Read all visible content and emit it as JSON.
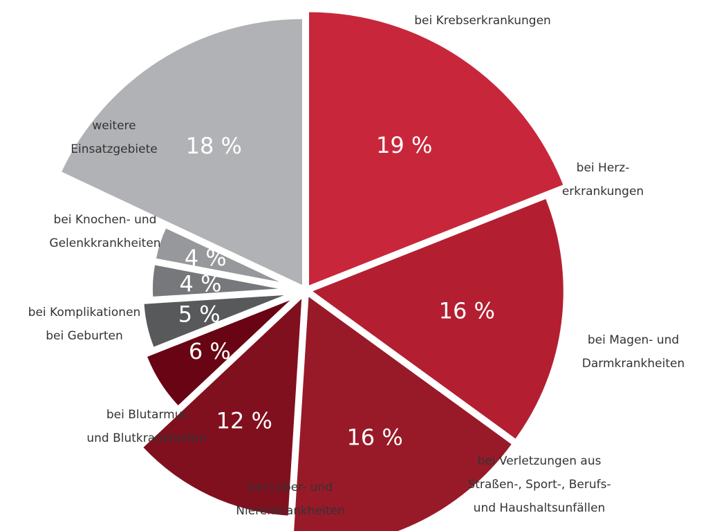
{
  "chart_data": {
    "type": "pie",
    "title": "",
    "unit": "%",
    "slices": [
      {
        "name": "bei Krebserkrankungen",
        "label_lines": [
          "bei Krebserkrankungen"
        ],
        "value": 19,
        "value_label": "19 %",
        "color": "#c8273b"
      },
      {
        "name": "bei Herzerkrankungen",
        "label_lines": [
          "bei Herz-",
          "erkrankungen"
        ],
        "value": 16,
        "value_label": "16 %",
        "color": "#b31f31"
      },
      {
        "name": "bei Magen- und Darmkrankheiten",
        "label_lines": [
          "bei Magen- und",
          "Darmkrankheiten"
        ],
        "value": 16,
        "value_label": "16 %",
        "color": "#981a28"
      },
      {
        "name": "bei Verletzungen aus Straßen-, Sport-, Berufs- und Haushaltsunfällen",
        "label_lines": [
          "bei Verletzungen aus",
          "Straßen-, Sport-, Berufs-",
          "und Haushaltsunfällen"
        ],
        "value": 12,
        "value_label": "12 %",
        "color": "#81101f"
      },
      {
        "name": "bei Leber- und Nierenkrankheiten",
        "label_lines": [
          "bei Leber- und",
          "Nierenkrankheiten"
        ],
        "value": 6,
        "value_label": "6 %",
        "color": "#680413"
      },
      {
        "name": "bei Blutarmut und Blutkrankheiten",
        "label_lines": [
          "bei Blutarmut",
          "und Blutkrankheiten"
        ],
        "value": 5,
        "value_label": "5 %",
        "color": "#58595b"
      },
      {
        "name": "bei Komplikationen bei Geburten",
        "label_lines": [
          "bei Komplikationen",
          "bei Geburten"
        ],
        "value": 4,
        "value_label": "4 %",
        "color": "#77787b"
      },
      {
        "name": "bei Knochen- und Gelenkkrankheiten",
        "label_lines": [
          "bei Knochen- und",
          "Gelenkkrankheiten"
        ],
        "value": 4,
        "value_label": "4 %",
        "color": "#97989b"
      },
      {
        "name": "weitere Einsatzgebiete",
        "label_lines": [
          "weitere",
          "Einsatzgebiete"
        ],
        "value": 18,
        "value_label": "18 %",
        "color": "#b1b2b5"
      }
    ]
  }
}
